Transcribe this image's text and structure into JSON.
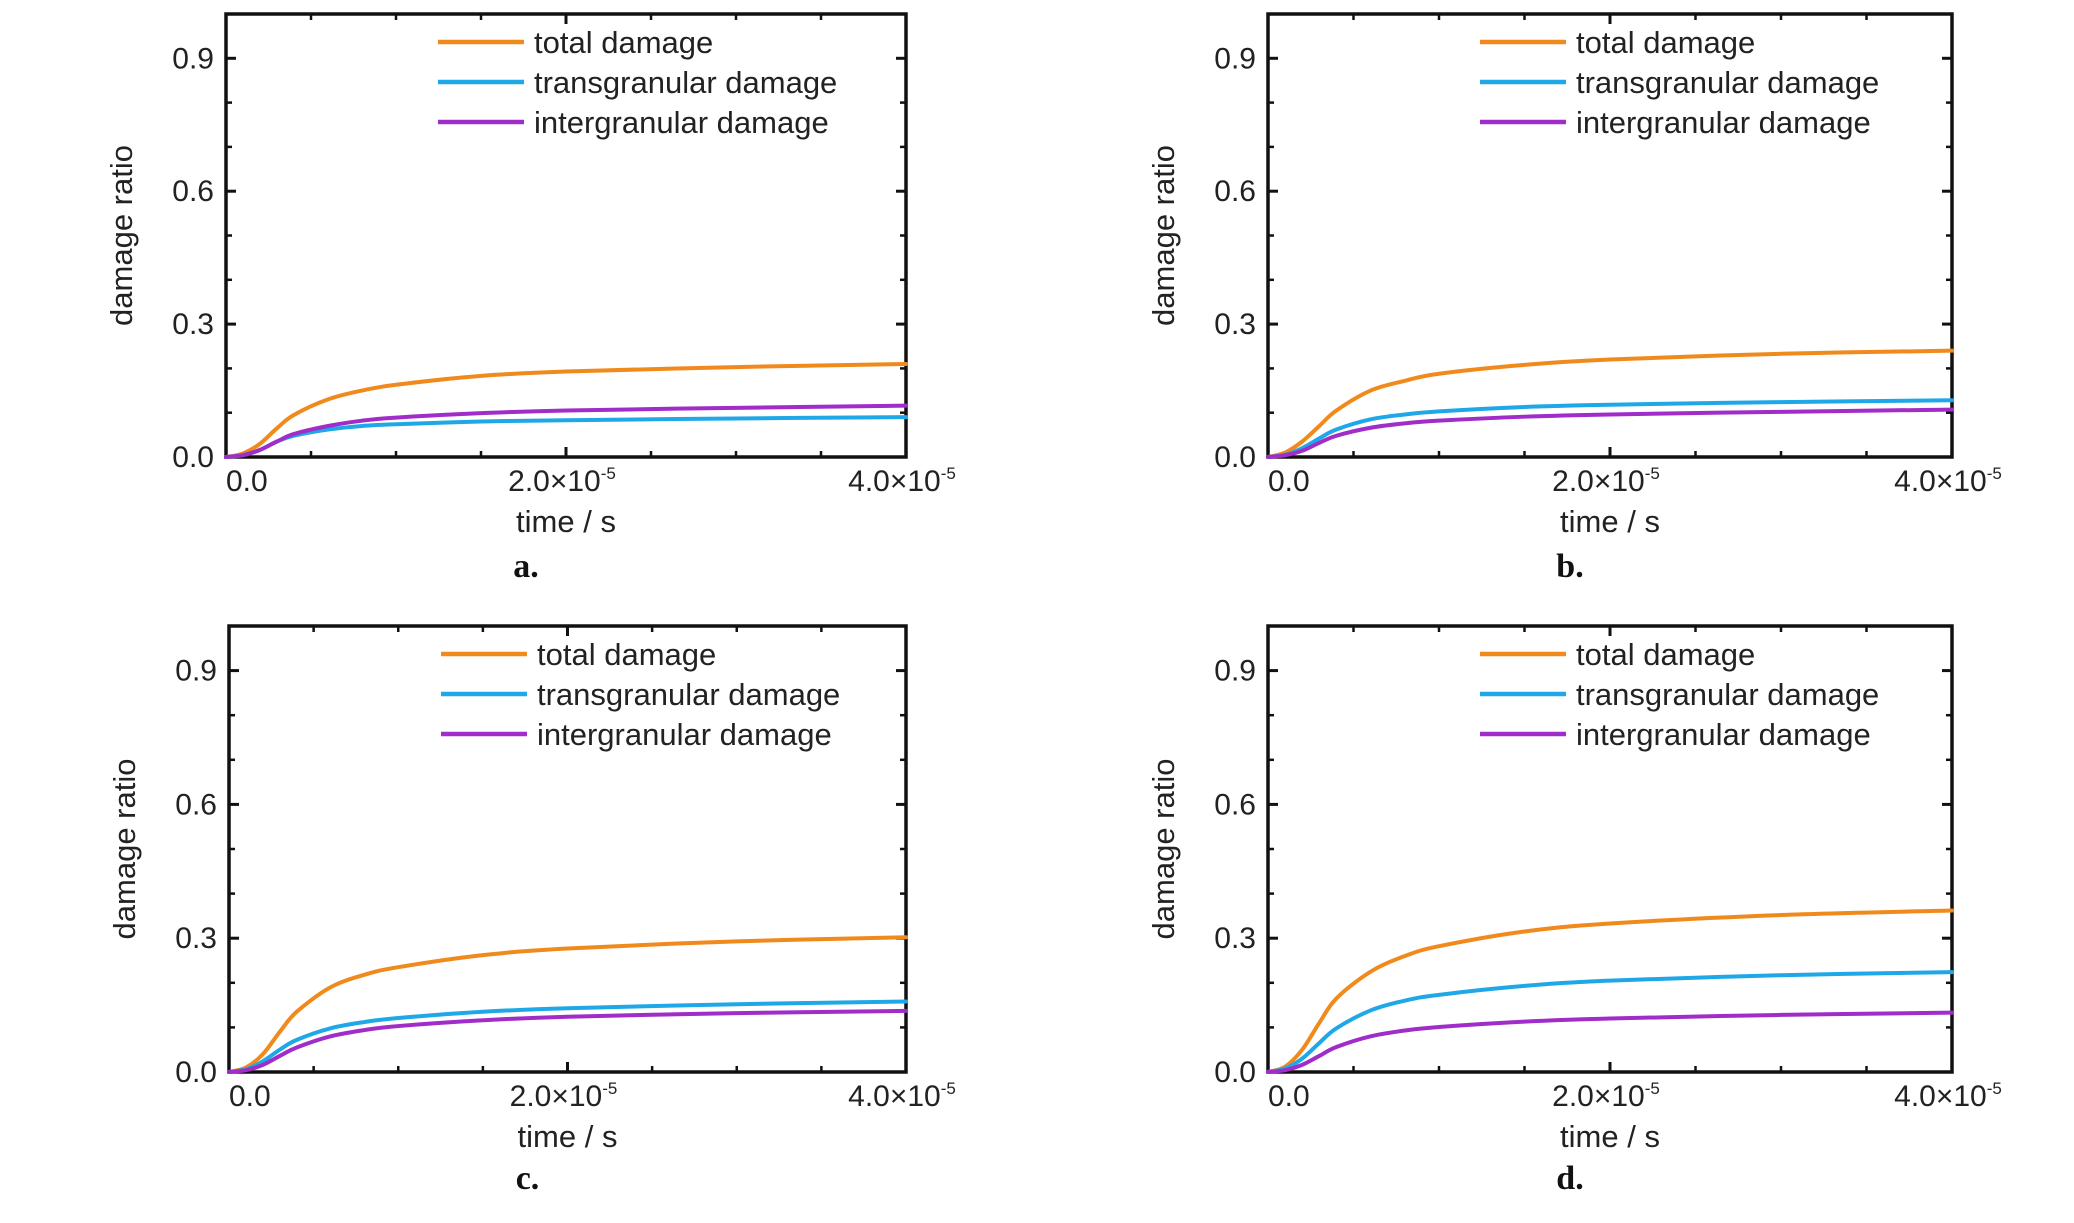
{
  "chart_data": [
    {
      "type": "line",
      "panel_label": "a.",
      "xlabel": "time / s",
      "ylabel": "damage ratio",
      "xlim": [
        0,
        4e-05
      ],
      "ylim": [
        0,
        1.0
      ],
      "x_ticks": [
        {
          "value": 0,
          "label": "0.0",
          "sup": ""
        },
        {
          "value": 2e-05,
          "label": "2.0×10",
          "sup": "-5"
        },
        {
          "value": 4e-05,
          "label": "4.0×10",
          "sup": "-5"
        }
      ],
      "y_ticks": [
        {
          "value": 0.0,
          "label": "0.0"
        },
        {
          "value": 0.3,
          "label": "0.3"
        },
        {
          "value": 0.6,
          "label": "0.6"
        },
        {
          "value": 0.9,
          "label": "0.9"
        }
      ],
      "legend_position": "top",
      "x": [
        0,
        1e-06,
        2e-06,
        3e-06,
        4e-06,
        6e-06,
        8e-06,
        1e-05,
        1.5e-05,
        2e-05,
        3e-05,
        4e-05
      ],
      "series": [
        {
          "name": "total damage",
          "color": "#f08a1c",
          "values": [
            0,
            0.008,
            0.03,
            0.065,
            0.095,
            0.13,
            0.15,
            0.163,
            0.183,
            0.193,
            0.203,
            0.21
          ]
        },
        {
          "name": "transgranular damage",
          "color": "#1fa8e8",
          "values": [
            0,
            0.004,
            0.016,
            0.035,
            0.048,
            0.062,
            0.07,
            0.074,
            0.08,
            0.083,
            0.087,
            0.09
          ]
        },
        {
          "name": "intergranular damage",
          "color": "#a02cc9",
          "values": [
            0,
            0.004,
            0.016,
            0.035,
            0.052,
            0.07,
            0.082,
            0.089,
            0.099,
            0.105,
            0.111,
            0.116
          ]
        }
      ]
    },
    {
      "type": "line",
      "panel_label": "b.",
      "xlabel": "time / s",
      "ylabel": "damage ratio",
      "xlim": [
        0,
        4e-05
      ],
      "ylim": [
        0,
        1.0
      ],
      "x_ticks": [
        {
          "value": 0,
          "label": "0.0",
          "sup": ""
        },
        {
          "value": 2e-05,
          "label": "2.0×10",
          "sup": "-5"
        },
        {
          "value": 4e-05,
          "label": "4.0×10",
          "sup": "-5"
        }
      ],
      "y_ticks": [
        {
          "value": 0.0,
          "label": "0.0"
        },
        {
          "value": 0.3,
          "label": "0.3"
        },
        {
          "value": 0.6,
          "label": "0.6"
        },
        {
          "value": 0.9,
          "label": "0.9"
        }
      ],
      "legend_position": "top",
      "x": [
        0,
        1e-06,
        2e-06,
        3e-06,
        4e-06,
        6e-06,
        8e-06,
        1e-05,
        1.5e-05,
        2e-05,
        3e-05,
        4e-05
      ],
      "series": [
        {
          "name": "total damage",
          "color": "#f08a1c",
          "values": [
            0,
            0.01,
            0.035,
            0.07,
            0.105,
            0.15,
            0.172,
            0.188,
            0.208,
            0.22,
            0.233,
            0.24
          ]
        },
        {
          "name": "transgranular damage",
          "color": "#1fa8e8",
          "values": [
            0,
            0.005,
            0.02,
            0.042,
            0.062,
            0.085,
            0.096,
            0.103,
            0.113,
            0.118,
            0.124,
            0.128
          ]
        },
        {
          "name": "intergranular damage",
          "color": "#a02cc9",
          "values": [
            0,
            0.004,
            0.014,
            0.032,
            0.048,
            0.066,
            0.076,
            0.082,
            0.091,
            0.096,
            0.102,
            0.107
          ]
        }
      ]
    },
    {
      "type": "line",
      "panel_label": "c.",
      "xlabel": "time / s",
      "ylabel": "damage ratio",
      "xlim": [
        0,
        4e-05
      ],
      "ylim": [
        0,
        1.0
      ],
      "x_ticks": [
        {
          "value": 0,
          "label": "0.0",
          "sup": ""
        },
        {
          "value": 2e-05,
          "label": "2.0×10",
          "sup": "-5"
        },
        {
          "value": 4e-05,
          "label": "4.0×10",
          "sup": "-5"
        }
      ],
      "y_ticks": [
        {
          "value": 0.0,
          "label": "0.0"
        },
        {
          "value": 0.3,
          "label": "0.3"
        },
        {
          "value": 0.6,
          "label": "0.6"
        },
        {
          "value": 0.9,
          "label": "0.9"
        }
      ],
      "legend_position": "top",
      "x": [
        0,
        1e-06,
        2e-06,
        3e-06,
        4e-06,
        6e-06,
        8e-06,
        1e-05,
        1.5e-05,
        2e-05,
        3e-05,
        4e-05
      ],
      "series": [
        {
          "name": "total damage",
          "color": "#f08a1c",
          "values": [
            0,
            0.01,
            0.04,
            0.09,
            0.135,
            0.19,
            0.218,
            0.235,
            0.262,
            0.277,
            0.293,
            0.302
          ]
        },
        {
          "name": "transgranular damage",
          "color": "#1fa8e8",
          "values": [
            0,
            0.006,
            0.024,
            0.05,
            0.072,
            0.098,
            0.112,
            0.121,
            0.135,
            0.143,
            0.152,
            0.158
          ]
        },
        {
          "name": "intergranular damage",
          "color": "#a02cc9",
          "values": [
            0,
            0.004,
            0.016,
            0.036,
            0.055,
            0.08,
            0.094,
            0.103,
            0.116,
            0.124,
            0.132,
            0.137
          ]
        }
      ]
    },
    {
      "type": "line",
      "panel_label": "d.",
      "xlabel": "time / s",
      "ylabel": "damage ratio",
      "xlim": [
        0,
        4e-05
      ],
      "ylim": [
        0,
        1.0
      ],
      "x_ticks": [
        {
          "value": 0,
          "label": "0.0",
          "sup": ""
        },
        {
          "value": 2e-05,
          "label": "2.0×10",
          "sup": "-5"
        },
        {
          "value": 4e-05,
          "label": "4.0×10",
          "sup": "-5"
        }
      ],
      "y_ticks": [
        {
          "value": 0.0,
          "label": "0.0"
        },
        {
          "value": 0.3,
          "label": "0.3"
        },
        {
          "value": 0.6,
          "label": "0.6"
        },
        {
          "value": 0.9,
          "label": "0.9"
        }
      ],
      "legend_position": "top",
      "x": [
        0,
        1e-06,
        2e-06,
        3e-06,
        4e-06,
        6e-06,
        8e-06,
        1e-05,
        1.5e-05,
        2e-05,
        3e-05,
        4e-05
      ],
      "series": [
        {
          "name": "total damage",
          "color": "#f08a1c",
          "values": [
            0,
            0.012,
            0.05,
            0.11,
            0.165,
            0.225,
            0.26,
            0.282,
            0.315,
            0.333,
            0.352,
            0.362
          ]
        },
        {
          "name": "transgranular damage",
          "color": "#1fa8e8",
          "values": [
            0,
            0.008,
            0.03,
            0.065,
            0.098,
            0.138,
            0.16,
            0.173,
            0.193,
            0.205,
            0.217,
            0.224
          ]
        },
        {
          "name": "intergranular damage",
          "color": "#a02cc9",
          "values": [
            0,
            0.004,
            0.016,
            0.036,
            0.056,
            0.08,
            0.093,
            0.101,
            0.113,
            0.12,
            0.128,
            0.133
          ]
        }
      ]
    }
  ]
}
